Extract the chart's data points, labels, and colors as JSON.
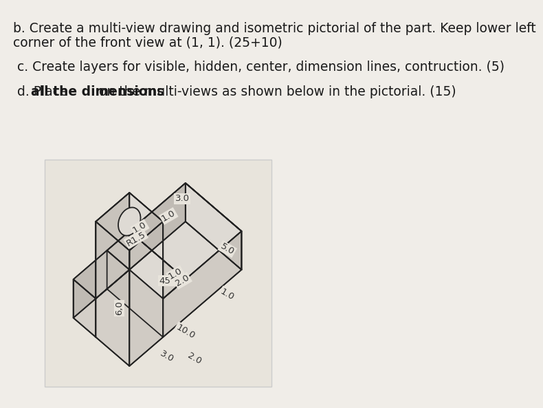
{
  "bg_color": "#f0ede8",
  "text_color": "#1a1a1a",
  "line_b": "b. Create a multi-view drawing and isometric pictorial of the part. Keep lower left",
  "line_b2": "corner of the front view at (1, 1). (25+10)",
  "line_c": " c. Create layers for visible, hidden, center, dimension lines, contruction. (5)",
  "line_d": " d. Place ",
  "line_d_bold": "all the dimensions",
  "line_d2": " on the multi-views as shown below in the pictorial. (15)",
  "box_bg": "#e8e4dc",
  "box_edge": "#cccccc",
  "draw_color": "#222222",
  "dim_color": "#333333"
}
